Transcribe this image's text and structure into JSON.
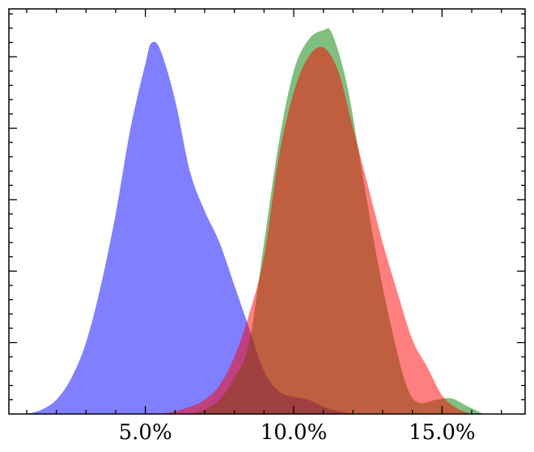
{
  "chart_data": {
    "type": "area",
    "title": "",
    "xlabel": "",
    "ylabel": "",
    "xlim": [
      0.4,
      17.8
    ],
    "ylim": [
      0,
      0.2835
    ],
    "grid": false,
    "legend": "none",
    "x_ticks": [
      {
        "value": 5,
        "label": "5.0%"
      },
      {
        "value": 10,
        "label": "10.0%"
      },
      {
        "value": 15,
        "label": "15.0%"
      }
    ],
    "x_minor_step": 1,
    "y_major_ticks": [
      0.05,
      0.1,
      0.15,
      0.2,
      0.25
    ],
    "y_minor_step": 0.01,
    "series": [
      {
        "color": "#0000ff",
        "opacity": 0.5,
        "points": [
          [
            1.0,
            0
          ],
          [
            1.5,
            0.003
          ],
          [
            2.0,
            0.01
          ],
          [
            2.5,
            0.025
          ],
          [
            3.0,
            0.05
          ],
          [
            3.5,
            0.09
          ],
          [
            4.0,
            0.14
          ],
          [
            4.5,
            0.2
          ],
          [
            5.0,
            0.245
          ],
          [
            5.2,
            0.2595
          ],
          [
            5.5,
            0.255
          ],
          [
            6.0,
            0.22
          ],
          [
            6.5,
            0.17
          ],
          [
            7.0,
            0.142
          ],
          [
            7.5,
            0.12
          ],
          [
            8.0,
            0.09
          ],
          [
            8.5,
            0.06
          ],
          [
            9.0,
            0.03
          ],
          [
            9.5,
            0.016
          ],
          [
            10.0,
            0.012
          ],
          [
            10.5,
            0.01
          ],
          [
            11.0,
            0.005
          ],
          [
            11.5,
            0.002
          ],
          [
            12.0,
            0
          ]
        ]
      },
      {
        "color": "#008000",
        "opacity": 0.5,
        "points": [
          [
            6.5,
            0
          ],
          [
            7.0,
            0.003
          ],
          [
            7.5,
            0.01
          ],
          [
            8.0,
            0.025
          ],
          [
            8.5,
            0.05
          ],
          [
            9.0,
            0.12
          ],
          [
            9.5,
            0.19
          ],
          [
            10.0,
            0.24
          ],
          [
            10.5,
            0.262
          ],
          [
            11.0,
            0.2685
          ],
          [
            11.3,
            0.266
          ],
          [
            11.8,
            0.23
          ],
          [
            12.3,
            0.17
          ],
          [
            12.8,
            0.11
          ],
          [
            13.3,
            0.06
          ],
          [
            13.8,
            0.02
          ],
          [
            14.2,
            0.008
          ],
          [
            14.8,
            0.01
          ],
          [
            15.3,
            0.011
          ],
          [
            15.8,
            0.006
          ],
          [
            16.4,
            0
          ]
        ]
      },
      {
        "color": "#ff0000",
        "opacity": 0.5,
        "points": [
          [
            5.5,
            0
          ],
          [
            6.0,
            0.002
          ],
          [
            6.5,
            0.005
          ],
          [
            7.0,
            0.01
          ],
          [
            7.5,
            0.02
          ],
          [
            8.0,
            0.04
          ],
          [
            8.5,
            0.07
          ],
          [
            9.0,
            0.11
          ],
          [
            9.5,
            0.18
          ],
          [
            10.0,
            0.225
          ],
          [
            10.5,
            0.25
          ],
          [
            11.0,
            0.2565
          ],
          [
            11.5,
            0.24
          ],
          [
            12.0,
            0.2
          ],
          [
            12.5,
            0.16
          ],
          [
            13.0,
            0.12
          ],
          [
            13.5,
            0.085
          ],
          [
            14.0,
            0.052
          ],
          [
            14.5,
            0.033
          ],
          [
            15.0,
            0.013
          ],
          [
            15.5,
            0.004
          ],
          [
            16.0,
            0
          ]
        ]
      }
    ]
  }
}
